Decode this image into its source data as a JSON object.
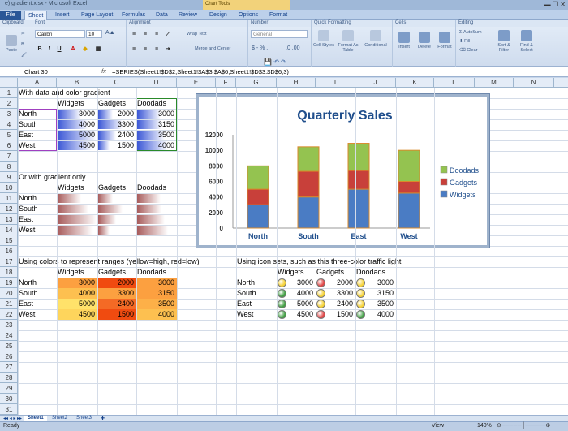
{
  "window": {
    "title": "e) gradient.xlsx - Microsoft Excel",
    "context_tab": "Chart Tools"
  },
  "ribbon_tabs": [
    "File",
    "Sheet",
    "Insert",
    "Page Layout",
    "Formulas",
    "Data",
    "Review",
    "Design",
    "Options",
    "Format"
  ],
  "ribbon": {
    "groups": [
      "Clipboard",
      "Font",
      "Alignment",
      "Number",
      "Quick Formatting",
      "Cells",
      "Editing"
    ],
    "paste": "Paste",
    "font_name": "Calibri",
    "font_size": "10",
    "wrap_text": "Wrap Text",
    "merge_center": "Merge and Center",
    "number_format": "General",
    "cell_styles": "Cell Styles",
    "format_as_table": "Format As Table",
    "conditional": "Conditional",
    "insert": "Insert",
    "delete": "Delete",
    "format": "Format",
    "autosum": "AutoSum",
    "fill": "Fill",
    "clear": "Clear",
    "sort_filter": "Sort & Filter",
    "find_select": "Find & Select"
  },
  "formula_bar": {
    "name_box": "Chart 30",
    "fx": "fx",
    "formula": "=SERIES(Sheet1!$D$2,Sheet1!$A$3:$A$6,Sheet1!$D$3:$D$6,3)"
  },
  "columns": [
    "A",
    "B",
    "C",
    "D",
    "E",
    "F",
    "G",
    "H",
    "I",
    "J",
    "K",
    "L",
    "M",
    "N"
  ],
  "rows": [
    "1",
    "2",
    "3",
    "4",
    "5",
    "6",
    "7",
    "8",
    "9",
    "10",
    "11",
    "12",
    "13",
    "14",
    "15",
    "16",
    "17",
    "18",
    "19",
    "20",
    "21",
    "22",
    "23",
    "24",
    "25",
    "26",
    "27",
    "28",
    "29",
    "30",
    "31"
  ],
  "colors": {
    "widgets": "#4a7cc4",
    "gadgets": "#c8403a",
    "doodads": "#94c350",
    "gradient_blue": "#3b57d6",
    "gradient_red": "#a85c5c",
    "range_yellow": "#ffe26a",
    "range_orange": "#fca040",
    "range_red": "#f04b10",
    "light_green": "#44a046",
    "light_yellow": "#f5d238",
    "light_red": "#e04848"
  },
  "sheet": {
    "section1": {
      "caption": "With data and color gradient",
      "headers": [
        "Widgets",
        "Gadgets",
        "Doodads"
      ],
      "rows": [
        {
          "label": "North",
          "values": [
            "3000",
            "2000",
            "3000"
          ],
          "fill": [
            0.6,
            0.4,
            0.6
          ]
        },
        {
          "label": "South",
          "values": [
            "4000",
            "3300",
            "3150"
          ],
          "fill": [
            0.8,
            0.66,
            0.63
          ]
        },
        {
          "label": "East",
          "values": [
            "5000",
            "2400",
            "3500"
          ],
          "fill": [
            1.0,
            0.48,
            0.7
          ]
        },
        {
          "label": "West",
          "values": [
            "4500",
            "1500",
            "4000"
          ],
          "fill": [
            0.9,
            0.3,
            0.8
          ]
        }
      ]
    },
    "section2": {
      "caption": "Or with gradient only",
      "headers": [
        "Widgets",
        "Gadgets",
        "Doodads"
      ],
      "rows": [
        {
          "label": "North",
          "fill": [
            0.6,
            0.4,
            0.6
          ]
        },
        {
          "label": "South",
          "fill": [
            0.8,
            0.66,
            0.63
          ]
        },
        {
          "label": "East",
          "fill": [
            1.0,
            0.48,
            0.7
          ]
        },
        {
          "label": "West",
          "fill": [
            0.9,
            0.3,
            0.8
          ]
        }
      ]
    },
    "section3": {
      "caption": "Using colors to represent ranges (yellow=high, red=low)",
      "headers": [
        "Widgets",
        "Gadgets",
        "Doodads"
      ],
      "rows": [
        {
          "label": "North",
          "values": [
            "3000",
            "2000",
            "3000"
          ],
          "colors": [
            "#fca040",
            "#f04b10",
            "#fca040"
          ]
        },
        {
          "label": "South",
          "values": [
            "4000",
            "3300",
            "3150"
          ],
          "colors": [
            "#fdc050",
            "#fca040",
            "#fca040"
          ]
        },
        {
          "label": "East",
          "values": [
            "5000",
            "2400",
            "3500"
          ],
          "colors": [
            "#ffe26a",
            "#f46a25",
            "#fdb048"
          ]
        },
        {
          "label": "West",
          "values": [
            "4500",
            "1500",
            "4000"
          ],
          "colors": [
            "#fed55c",
            "#f04b10",
            "#fdc050"
          ]
        }
      ]
    },
    "section4": {
      "caption": "Using icon sets, such as this three-color traffic light",
      "headers": [
        "Widgets",
        "Gadgets",
        "Doodads"
      ],
      "rows": [
        {
          "label": "North",
          "values": [
            "3000",
            "2000",
            "3000"
          ],
          "lights": [
            "yellow",
            "red",
            "yellow"
          ]
        },
        {
          "label": "South",
          "values": [
            "4000",
            "3300",
            "3150"
          ],
          "lights": [
            "green",
            "yellow",
            "yellow"
          ]
        },
        {
          "label": "East",
          "values": [
            "5000",
            "2400",
            "3500"
          ],
          "lights": [
            "green",
            "yellow",
            "yellow"
          ]
        },
        {
          "label": "West",
          "values": [
            "4500",
            "1500",
            "4000"
          ],
          "lights": [
            "green",
            "red",
            "green"
          ]
        }
      ]
    }
  },
  "chart_data": {
    "type": "bar",
    "stacked": true,
    "title": "Quarterly Sales",
    "categories": [
      "North",
      "South",
      "East",
      "West"
    ],
    "series": [
      {
        "name": "Widgets",
        "values": [
          3000,
          4000,
          5000,
          4500
        ],
        "color": "#4a7cc4"
      },
      {
        "name": "Gadgets",
        "values": [
          2000,
          3300,
          2400,
          1500
        ],
        "color": "#c8403a"
      },
      {
        "name": "Doodads",
        "values": [
          3000,
          3150,
          3500,
          4000
        ],
        "color": "#94c350"
      }
    ],
    "ylim": [
      0,
      12000
    ],
    "yticks": [
      "12000",
      "10000",
      "8000",
      "6000",
      "4000",
      "2000",
      "0"
    ],
    "legend": "right",
    "grid": false
  },
  "sheet_tabs": [
    "Sheet1",
    "Sheet2",
    "Sheet3"
  ],
  "status": {
    "ready": "Ready",
    "view": "View",
    "zoom": "140%"
  }
}
